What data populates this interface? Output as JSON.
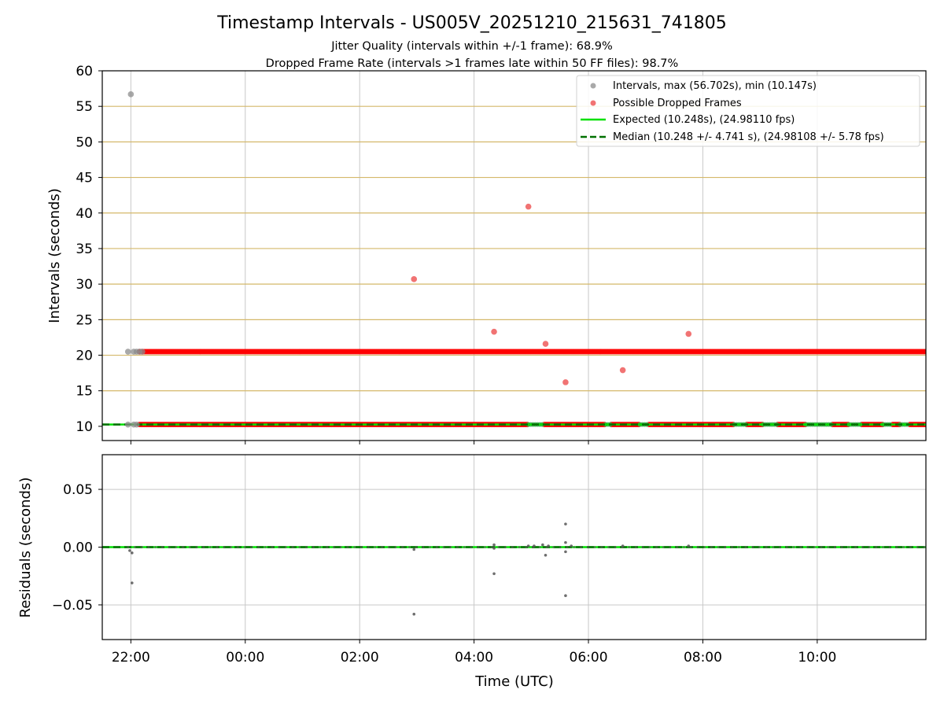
{
  "figure": {
    "title": "Timestamp Intervals - US005V_20251210_215631_741805",
    "subtitle_1": "Jitter Quality (intervals within +/-1 frame): 68.9%",
    "subtitle_2": "Dropped Frame Rate (intervals >1 frames late within 50 FF files): 98.7%"
  },
  "colors": {
    "intervals": "#8c8c8c",
    "dropped": "#ff0000",
    "dropped_sparse": "#ee5a5a",
    "expected": "#00e000",
    "median": "#007000",
    "frame_lines": "#d4b86a",
    "grid": "#c8c8c8",
    "residuals": "#555555"
  },
  "chart_data": [
    {
      "type": "scatter",
      "title": "",
      "xlabel": "",
      "ylabel": "Intervals (seconds)",
      "x_unit": "hours since 00:00 UTC (negative = previous day)",
      "xlim": [
        -2.5,
        11.9
      ],
      "ylim": [
        8,
        60
      ],
      "yticks": [
        10,
        15,
        20,
        25,
        30,
        35,
        40,
        45,
        50,
        55,
        60
      ],
      "ytick_labels": [
        "10",
        "15",
        "20",
        "25",
        "30",
        "35",
        "40",
        "45",
        "50",
        "55",
        "60"
      ],
      "horizontal_frame_lines": [
        10.248,
        15,
        20,
        25,
        30,
        35,
        40,
        45,
        50,
        55
      ],
      "series": [
        {
          "name": "Intervals, max (56.702s), min (10.147s)",
          "kind": "points",
          "points": [
            [
              -2.0,
              56.7
            ],
            [
              -2.05,
              20.5
            ],
            [
              -1.95,
              20.5
            ],
            [
              -1.9,
              20.5
            ],
            [
              -1.85,
              20.5
            ],
            [
              -1.8,
              20.5
            ],
            [
              -2.05,
              10.25
            ],
            [
              -1.95,
              10.25
            ],
            [
              -1.9,
              10.25
            ]
          ]
        },
        {
          "name": "Possible Dropped Frames",
          "kind": "points",
          "points": [
            [
              2.95,
              30.7
            ],
            [
              4.35,
              23.3
            ],
            [
              4.95,
              40.9
            ],
            [
              5.25,
              21.6
            ],
            [
              5.6,
              16.2
            ],
            [
              6.6,
              17.9
            ],
            [
              7.75,
              23.0
            ]
          ]
        },
        {
          "name": "Possible Dropped Frames (dense band ~20.5 s)",
          "kind": "band",
          "y": 20.5,
          "x_range": [
            -1.85,
            11.9
          ]
        },
        {
          "name": "Possible Dropped Frames (dense band ~10.25 s)",
          "kind": "band",
          "y": 10.25,
          "x_range": [
            -1.85,
            11.9
          ],
          "gaps": [
            [
              4.95,
              5.2
            ],
            [
              6.3,
              6.4
            ],
            [
              6.9,
              7.05
            ],
            [
              8.55,
              8.75
            ],
            [
              9.05,
              9.3
            ],
            [
              9.8,
              10.25
            ],
            [
              10.55,
              10.75
            ],
            [
              11.15,
              11.3
            ],
            [
              11.45,
              11.6
            ]
          ]
        },
        {
          "name": "Expected (10.248s), (24.98110 fps)",
          "kind": "hline",
          "y": 10.248,
          "style": "solid"
        },
        {
          "name": "Median (10.248 +/- 4.741 s), (24.98108 +/- 5.78 fps)",
          "kind": "hline",
          "y": 10.248,
          "style": "dashed"
        }
      ],
      "legend": {
        "placement": "top-right",
        "entries": [
          "Intervals, max (56.702s), min (10.147s)",
          "Possible Dropped Frames",
          "Expected (10.248s), (24.98110 fps)",
          "Median (10.248 +/- 4.741 s), (24.98108 +/- 5.78 fps)"
        ]
      },
      "grid": true
    },
    {
      "type": "scatter",
      "xlabel": "Time (UTC)",
      "ylabel": "Residuals (seconds)",
      "x_unit": "hours since 00:00 UTC (negative = previous day)",
      "xlim": [
        -2.5,
        11.9
      ],
      "ylim": [
        -0.08,
        0.08
      ],
      "xticks": [
        -2,
        0,
        2,
        4,
        6,
        8,
        10
      ],
      "xtick_labels": [
        "22:00",
        "00:00",
        "02:00",
        "04:00",
        "06:00",
        "08:00",
        "10:00"
      ],
      "yticks": [
        0.05,
        0.0,
        -0.05
      ],
      "ytick_labels": [
        "0.05",
        "0.00",
        "−0.05"
      ],
      "baseline": 0.0,
      "residual_points": [
        [
          -2.02,
          -0.003
        ],
        [
          -1.98,
          -0.005
        ],
        [
          -1.98,
          -0.031
        ],
        [
          2.95,
          -0.002
        ],
        [
          2.95,
          -0.058
        ],
        [
          4.35,
          0.002
        ],
        [
          4.35,
          -0.001
        ],
        [
          4.35,
          -0.023
        ],
        [
          4.95,
          0.001
        ],
        [
          5.05,
          0.001
        ],
        [
          5.2,
          0.002
        ],
        [
          5.25,
          -0.007
        ],
        [
          5.3,
          0.001
        ],
        [
          5.6,
          0.02
        ],
        [
          5.6,
          0.004
        ],
        [
          5.6,
          -0.004
        ],
        [
          5.6,
          -0.042
        ],
        [
          5.7,
          0.001
        ],
        [
          6.6,
          0.001
        ],
        [
          7.75,
          0.001
        ]
      ],
      "grid": true
    }
  ]
}
